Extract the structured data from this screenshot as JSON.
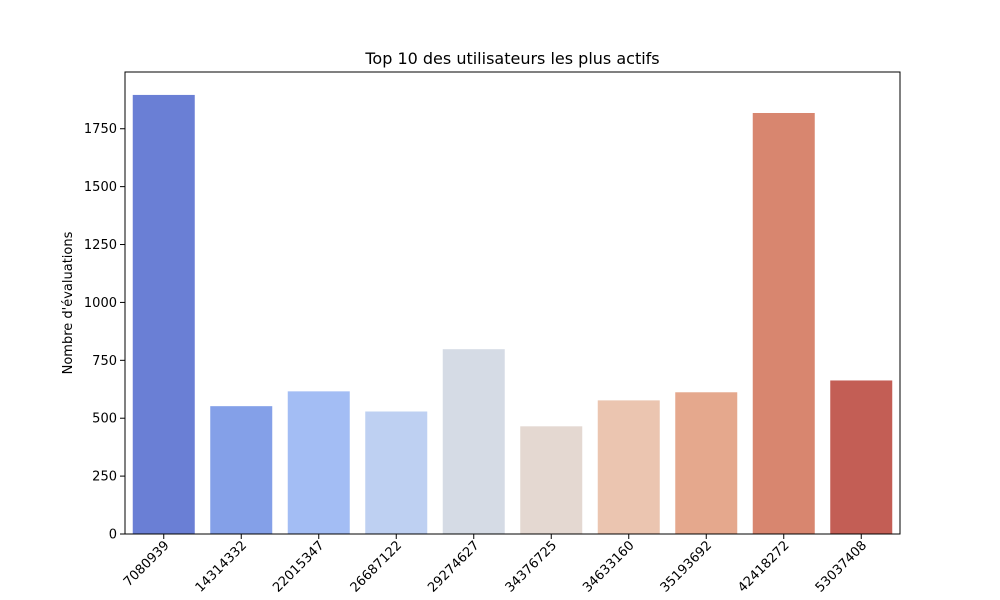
{
  "chart_data": {
    "type": "bar",
    "title": "Top 10 des utilisateurs les plus actifs",
    "xlabel": "",
    "ylabel": "Nombre d'évaluations",
    "categories": [
      "7080939",
      "14314332",
      "22015347",
      "26687122",
      "29274627",
      "34376725",
      "34633160",
      "35193692",
      "42418272",
      "53037408"
    ],
    "values": [
      1896,
      552,
      616,
      529,
      798,
      465,
      577,
      612,
      1818,
      663
    ],
    "colors": [
      "#6a7fd5",
      "#84a0e8",
      "#a3bdf4",
      "#bed0f2",
      "#d5dbe5",
      "#e4d8d1",
      "#ebc5b0",
      "#e5a88d",
      "#d8866f",
      "#c35e55"
    ],
    "ylim": [
      0,
      1995
    ],
    "yticks": [
      0,
      250,
      500,
      750,
      1000,
      1250,
      1500,
      1750
    ],
    "grid": false,
    "legend": "none"
  }
}
